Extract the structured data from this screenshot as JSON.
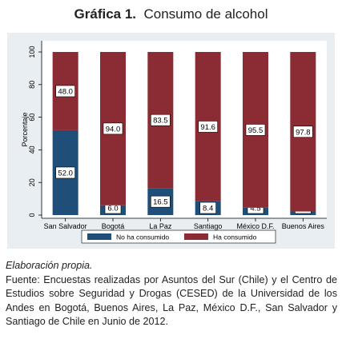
{
  "title": {
    "prefix": "Gráfica 1.",
    "text": "Consumo de alcohol"
  },
  "chart_data": {
    "type": "bar",
    "stacked": true,
    "categories": [
      "San Salvador",
      "Bogotá",
      "La Paz",
      "Santiago",
      "México D.F.",
      "Buenos Aires"
    ],
    "series": [
      {
        "name": "No ha consumido",
        "values": [
          52.0,
          6.0,
          16.5,
          8.4,
          4.5,
          2.2
        ],
        "color": "#1f4e79"
      },
      {
        "name": "Ha consumido",
        "values": [
          48.0,
          94.0,
          83.5,
          91.6,
          95.5,
          97.8
        ],
        "color": "#8b2b33"
      }
    ],
    "value_labels": [
      [
        "52.0",
        "6.0",
        "16.5",
        "8.4",
        "4.5",
        "2.2"
      ],
      [
        "48.0",
        "94.0",
        "83.5",
        "91.6",
        "95.5",
        "97.8"
      ]
    ],
    "ylabel": "Porcentaje",
    "ylim": [
      0,
      100
    ],
    "yticks": [
      0,
      20,
      40,
      60,
      80,
      100
    ],
    "grid": false,
    "legend": "bottom"
  },
  "notes": {
    "credit": "Elaboración propia.",
    "source": "Fuente: Encuestas realizadas por Asuntos del Sur (Chile) y el Centro de Estudios sobre Seguridad y Drogas (CESED) de la Universidad de los Andes en Bogotá, Buenos Aires, La Paz,  México D.F., San Salvador y Santiago de Chile en Junio de 2012."
  }
}
